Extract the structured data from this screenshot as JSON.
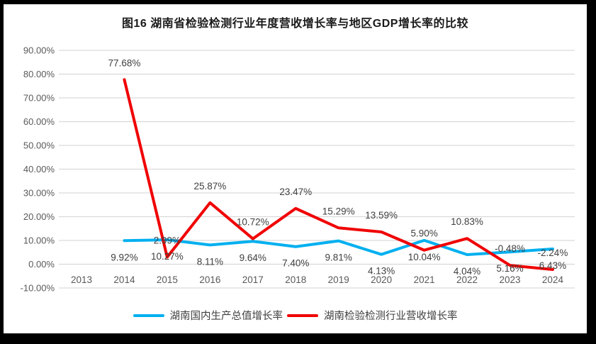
{
  "title": "图16  湖南省检验检测行业年度营收增长率与地区GDP增长率的比较",
  "frame": {
    "background": "#000000",
    "panel_background": "#ffffff"
  },
  "axis_style": {
    "grid_color": "#d9d9d9",
    "tick_label_color": "#595959",
    "data_label_color": "#404040"
  },
  "chart_data": {
    "type": "line",
    "title": "图16  湖南省检验检测行业年度营收增长率与地区GDP增长率的比较",
    "categories": [
      "2013",
      "2014",
      "2015",
      "2016",
      "2017",
      "2018",
      "2019",
      "2020",
      "2021",
      "2022",
      "2023",
      "2024"
    ],
    "series": [
      {
        "name": "湖南国内生产总值增长率",
        "color": "#00b0f0",
        "label_placement": "below",
        "values": [
          null,
          9.92,
          10.27,
          8.11,
          9.64,
          7.4,
          9.81,
          4.13,
          10.04,
          4.04,
          5.16,
          6.43
        ],
        "labels": [
          null,
          "9.92%",
          "10.27%",
          "8.11%",
          "9.64%",
          "7.40%",
          "9.81%",
          "4.13%",
          "10.04%",
          "4.04%",
          "5.16%",
          "6.43%"
        ]
      },
      {
        "name": "湖南检验检测行业营收增长率",
        "color": "#f00000",
        "label_placement": "above",
        "values": [
          null,
          77.68,
          2.99,
          25.87,
          10.72,
          23.47,
          15.29,
          13.59,
          5.9,
          10.83,
          -0.48,
          -2.24
        ],
        "labels": [
          null,
          "77.68%",
          "2.99%",
          "25.87%",
          "10.72%",
          "23.47%",
          "15.29%",
          "13.59%",
          "5.90%",
          "10.83%",
          "-0.48%",
          "-2.24%"
        ]
      }
    ],
    "ylim": [
      -10,
      90
    ],
    "ytick_step": 10,
    "ytick_labels": [
      "90.00%",
      "80.00%",
      "70.00%",
      "60.00%",
      "50.00%",
      "40.00%",
      "30.00%",
      "20.00%",
      "10.00%",
      "0.00%",
      "-10.00%"
    ],
    "grid": true,
    "legend_position": "bottom"
  }
}
